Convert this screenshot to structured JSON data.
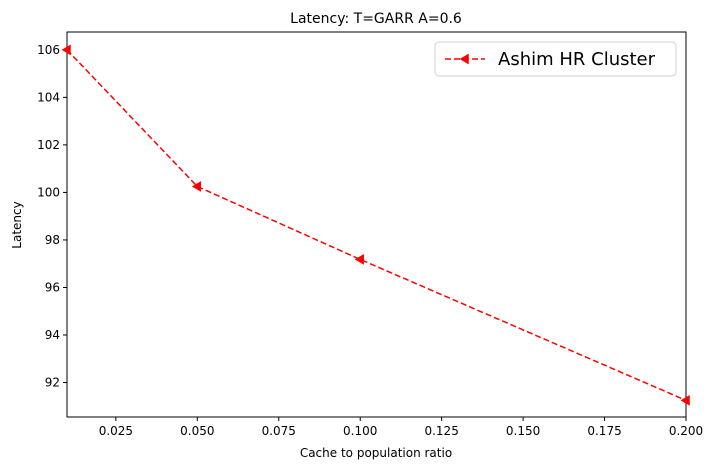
{
  "chart_data": {
    "type": "line",
    "title": "Latency: T=GARR A=0.6",
    "xlabel": "Cache to population ratio",
    "ylabel": "Latency",
    "xlim": [
      0.01,
      0.2
    ],
    "ylim": [
      90.55,
      106.75
    ],
    "xticks": [
      "0.025",
      "0.050",
      "0.075",
      "0.100",
      "0.125",
      "0.150",
      "0.175",
      "0.200"
    ],
    "yticks": [
      "92",
      "94",
      "96",
      "98",
      "100",
      "102",
      "104",
      "106"
    ],
    "grid": false,
    "legend_position": "top-right",
    "series": [
      {
        "name": "Ashim HR Cluster",
        "color": "#ff0000",
        "linestyle": "dashed",
        "marker": "triangle-left",
        "x": [
          0.01,
          0.05,
          0.1,
          0.2
        ],
        "y": [
          106.0,
          100.25,
          97.18,
          91.25
        ]
      }
    ]
  }
}
